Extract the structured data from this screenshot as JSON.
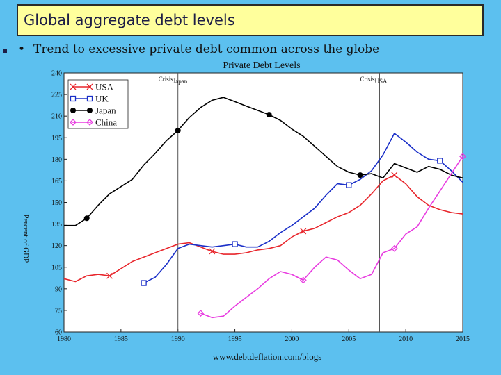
{
  "slide": {
    "title": "Global aggregate debt levels",
    "bullet": "Trend to excessive private debt common across the globe",
    "bullet_marker": "•"
  },
  "colors": {
    "background": "#5cc0ef",
    "title_bg": "#ffff9c",
    "plot_bg": "#ffffff",
    "crisis_line": "#555555"
  },
  "chart_data": {
    "type": "line",
    "title": "Private Debt Levels",
    "ylabel": "Percent of GDP",
    "xlabel": "",
    "source": "www.debtdeflation.com/blogs",
    "xlim": [
      1980,
      2015
    ],
    "ylim": [
      60,
      240
    ],
    "xticks": [
      1980,
      1985,
      1990,
      1995,
      2000,
      2005,
      2010,
      2015
    ],
    "yticks": [
      60,
      75,
      90,
      105,
      120,
      135,
      150,
      165,
      180,
      195,
      210,
      225,
      240
    ],
    "legend_position": "top-left",
    "annotations": [
      {
        "label": "Crisis",
        "sub": "Japan",
        "x": 1990
      },
      {
        "label": "Crisis",
        "sub": "USA",
        "x": 2007.7
      }
    ],
    "series": [
      {
        "name": "USA",
        "color": "#e8262c",
        "marker": "x",
        "x": [
          1980,
          1981,
          1982,
          1983,
          1984,
          1985,
          1986,
          1987,
          1988,
          1989,
          1990,
          1991,
          1992,
          1993,
          1994,
          1995,
          1996,
          1997,
          1998,
          1999,
          2000,
          2001,
          2002,
          2003,
          2004,
          2005,
          2006,
          2007,
          2008,
          2009,
          2010,
          2011,
          2012,
          2013,
          2014,
          2015
        ],
        "values": [
          97,
          95,
          99,
          100,
          99,
          104,
          109,
          112,
          115,
          118,
          121,
          122,
          119,
          116,
          114,
          114,
          115,
          117,
          118,
          120,
          126,
          130,
          132,
          136,
          140,
          143,
          148,
          156,
          165,
          169,
          163,
          154,
          148,
          145,
          143,
          142
        ]
      },
      {
        "name": "UK",
        "color": "#1a2fc8",
        "marker": "square",
        "x": [
          1987,
          1988,
          1989,
          1990,
          1991,
          1992,
          1993,
          1994,
          1995,
          1996,
          1997,
          1998,
          1999,
          2000,
          2001,
          2002,
          2003,
          2004,
          2005,
          2006,
          2007,
          2008,
          2009,
          2010,
          2011,
          2012,
          2013,
          2014,
          2015
        ],
        "values": [
          94,
          98,
          107,
          118,
          121,
          120,
          119,
          120,
          121,
          119,
          119,
          123,
          129,
          134,
          140,
          146,
          155,
          163,
          162,
          166,
          172,
          183,
          198,
          192,
          185,
          180,
          179,
          172,
          164
        ]
      },
      {
        "name": "Japan",
        "color": "#000000",
        "marker": "circle",
        "x": [
          1980,
          1981,
          1982,
          1983,
          1984,
          1985,
          1986,
          1987,
          1988,
          1989,
          1990,
          1991,
          1992,
          1993,
          1994,
          1995,
          1996,
          1997,
          1998,
          1999,
          2000,
          2001,
          2002,
          2003,
          2004,
          2005,
          2006,
          2007,
          2008,
          2009,
          2010,
          2011,
          2012,
          2013,
          2014,
          2015
        ],
        "values": [
          134,
          134,
          139,
          148,
          156,
          161,
          166,
          176,
          184,
          193,
          200,
          209,
          216,
          221,
          223,
          220,
          217,
          214,
          211,
          207,
          201,
          196,
          189,
          182,
          175,
          171,
          169,
          170,
          167,
          177,
          174,
          171,
          175,
          173,
          169,
          167
        ]
      },
      {
        "name": "China",
        "color": "#e83ce0",
        "marker": "diamond",
        "x": [
          1992,
          1993,
          1994,
          1995,
          1996,
          1997,
          1998,
          1999,
          2000,
          2001,
          2002,
          2003,
          2004,
          2005,
          2006,
          2007,
          2008,
          2009,
          2010,
          2011,
          2012,
          2013,
          2014,
          2015
        ],
        "values": [
          73,
          70,
          71,
          78,
          84,
          90,
          97,
          102,
          100,
          96,
          105,
          112,
          110,
          103,
          97,
          100,
          115,
          118,
          128,
          133,
          146,
          158,
          170,
          182
        ]
      }
    ]
  }
}
